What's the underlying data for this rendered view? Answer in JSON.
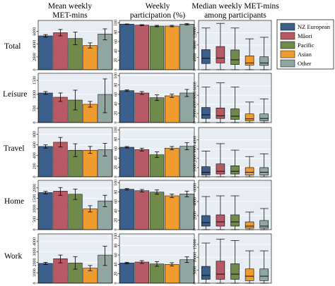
{
  "column_titles": [
    [
      "Mean weekly",
      "MET-mins"
    ],
    [
      "Weekly",
      "participation (%)"
    ],
    [
      "Median weekly MET-mins",
      "among participants"
    ]
  ],
  "row_labels": [
    "Total",
    "Leisure",
    "Travel",
    "Home",
    "Work"
  ],
  "colors": {
    "NZ European": "#3b5f8c",
    "Māori": "#b85a66",
    "Pacific": "#6f8a4a",
    "Asian": "#f09b2e",
    "Other": "#8fa6a1",
    "panel_background": "#e8edf4",
    "grid": "#ffffff"
  },
  "chart_data": {
    "type": "bar",
    "legend": {
      "entries": [
        "NZ European",
        "Māori",
        "Pacific",
        "Asian",
        "Other"
      ],
      "placement": "top-right"
    },
    "groups": [
      "NZ European",
      "Māori",
      "Pacific",
      "Asian",
      "Other"
    ],
    "panels": {
      "mean_met_mins": {
        "type": "bar",
        "yticks": {
          "Total": [
            0,
            2000,
            4000,
            6000
          ],
          "Leisure": [
            0,
            500,
            1000,
            1500
          ],
          "Travel": [
            0,
            200,
            400,
            600,
            800
          ],
          "Home": [
            0,
            500,
            1000,
            1500,
            2000
          ],
          "Work": [
            0,
            1000,
            2000,
            3000,
            4000
          ]
        },
        "ylim": {
          "Total": [
            0,
            7500
          ],
          "Leisure": [
            0,
            1700
          ],
          "Travel": [
            0,
            900
          ],
          "Home": [
            0,
            2300
          ],
          "Work": [
            0,
            4600
          ]
        },
        "values": {
          "Total": [
            5300,
            5800,
            4900,
            3800,
            5600
          ],
          "Leisure": [
            1050,
            900,
            800,
            650,
            1000
          ],
          "Travel": [
            570,
            650,
            500,
            500,
            510
          ],
          "Home": [
            1780,
            1850,
            1700,
            1000,
            1380
          ],
          "Work": [
            1900,
            2350,
            1950,
            1450,
            2700
          ]
        },
        "error_low": {
          "Total": [
            5100,
            5300,
            3900,
            3400,
            4700
          ],
          "Leisure": [
            1000,
            750,
            450,
            550,
            350
          ],
          "Travel": [
            540,
            560,
            380,
            440,
            390
          ],
          "Home": [
            1720,
            1650,
            1450,
            850,
            1100
          ],
          "Work": [
            1800,
            1950,
            1350,
            1200,
            1700
          ]
        },
        "error_high": {
          "Total": [
            5500,
            6300,
            5900,
            4200,
            6400
          ],
          "Leisure": [
            1100,
            1050,
            1150,
            750,
            1550
          ],
          "Travel": [
            600,
            740,
            620,
            570,
            630
          ],
          "Home": [
            1840,
            2020,
            1950,
            1150,
            1650
          ],
          "Work": [
            2000,
            2700,
            2550,
            1700,
            3550
          ]
        }
      },
      "participation_pct": {
        "type": "bar",
        "yticks": [
          0,
          20,
          40,
          60,
          80,
          100
        ],
        "ylim": [
          0,
          102
        ],
        "values": {
          "Total": [
            97,
            95,
            93,
            93,
            97
          ],
          "Leisure": [
            68,
            63,
            53,
            57,
            63
          ],
          "Travel": [
            63,
            58,
            47,
            61,
            65
          ],
          "Home": [
            86,
            83,
            80,
            72,
            76
          ],
          "Work": [
            43,
            45,
            41,
            40,
            50
          ]
        },
        "error_low": {
          "Total": [
            96.5,
            94,
            91.5,
            91.5,
            95.5
          ],
          "Leisure": [
            66.5,
            60,
            47,
            53.5,
            55.5
          ],
          "Travel": [
            61.5,
            55,
            41,
            57.5,
            57.5
          ],
          "Home": [
            84.5,
            80.5,
            75.5,
            68.5,
            70
          ],
          "Work": [
            41.5,
            42,
            36,
            36.5,
            44
          ]
        },
        "error_high": {
          "Total": [
            97.5,
            96,
            94.5,
            94.5,
            98.5
          ],
          "Leisure": [
            69.5,
            66,
            59,
            60.5,
            70.5
          ],
          "Travel": [
            64.5,
            61,
            53,
            64.5,
            72.5
          ],
          "Home": [
            87.5,
            85.5,
            84.5,
            75.5,
            82
          ],
          "Work": [
            44.5,
            48,
            46,
            43.5,
            56
          ]
        }
      },
      "median_met_mins_participants": {
        "type": "box",
        "yticks": {
          "Total": [
            0,
            4000,
            8000,
            12000
          ],
          "Leisure": [
            0,
            2000,
            4000,
            6000,
            8000
          ],
          "Travel": [
            0,
            1000,
            2000,
            3000,
            4000
          ],
          "Home": [
            0,
            2000,
            4000,
            6000
          ],
          "Work": [
            0,
            5000,
            10000,
            15000
          ]
        },
        "ylim": {
          "Total": [
            0,
            15500
          ],
          "Leisure": [
            0,
            10500
          ],
          "Travel": [
            0,
            5200
          ],
          "Home": [
            0,
            6800
          ],
          "Work": [
            0,
            18500
          ]
        },
        "boxes": {
          "Total": [
            {
              "whisker_low": 0,
              "q1": 2000,
              "median": 3700,
              "q3": 6500,
              "whisker_high": 13500
            },
            {
              "whisker_low": 0,
              "q1": 2200,
              "median": 3800,
              "q3": 7500,
              "whisker_high": 15000
            },
            {
              "whisker_low": 0,
              "q1": 1700,
              "median": 3200,
              "q3": 6400,
              "whisker_high": 13500
            },
            {
              "whisker_low": 0,
              "q1": 1500,
              "median": 2200,
              "q3": 4500,
              "whisker_high": 10000
            },
            {
              "whisker_low": 0,
              "q1": 1400,
              "median": 2200,
              "q3": 4200,
              "whisker_high": 10500
            }
          ],
          "Leisure": [
            {
              "whisker_low": 0,
              "q1": 900,
              "median": 1700,
              "q3": 3300,
              "whisker_high": 7800
            },
            {
              "whisker_low": 0,
              "q1": 900,
              "median": 1500,
              "q3": 3200,
              "whisker_high": 8700
            },
            {
              "whisker_low": 0,
              "q1": 700,
              "median": 1400,
              "q3": 3000,
              "whisker_high": 7800
            },
            {
              "whisker_low": 0,
              "q1": 400,
              "median": 800,
              "q3": 1900,
              "whisker_high": 4500
            },
            {
              "whisker_low": 0,
              "q1": 400,
              "median": 900,
              "q3": 1900,
              "whisker_high": 5200
            }
          ],
          "Travel": [
            {
              "whisker_low": 0,
              "q1": 200,
              "median": 500,
              "q3": 1100,
              "whisker_high": 2800
            },
            {
              "whisker_low": 0,
              "q1": 300,
              "median": 600,
              "q3": 1400,
              "whisker_high": 3600
            },
            {
              "whisker_low": 0,
              "q1": 300,
              "median": 600,
              "q3": 1200,
              "whisker_high": 2900
            },
            {
              "whisker_low": 0,
              "q1": 200,
              "median": 500,
              "q3": 1000,
              "whisker_high": 2200
            },
            {
              "whisker_low": 0,
              "q1": 200,
              "median": 500,
              "q3": 1000,
              "whisker_high": 2500
            }
          ],
          "Home": [
            {
              "whisker_low": 0,
              "q1": 500,
              "median": 1000,
              "q3": 2000,
              "whisker_high": 4700
            },
            {
              "whisker_low": 0,
              "q1": 500,
              "median": 1100,
              "q3": 2100,
              "whisker_high": 4800
            },
            {
              "whisker_low": 0,
              "q1": 500,
              "median": 1100,
              "q3": 2100,
              "whisker_high": 4800
            },
            {
              "whisker_low": 0,
              "q1": 200,
              "median": 500,
              "q3": 1100,
              "whisker_high": 2500
            },
            {
              "whisker_low": 0,
              "q1": 200,
              "median": 500,
              "q3": 1300,
              "whisker_high": 3000
            }
          ],
          "Work": [
            {
              "whisker_low": 0,
              "q1": 1500,
              "median": 3000,
              "q3": 6500,
              "whisker_high": 15500
            },
            {
              "whisker_low": 0,
              "q1": 1500,
              "median": 3500,
              "q3": 8500,
              "whisker_high": 17000
            },
            {
              "whisker_low": 0,
              "q1": 1500,
              "median": 3500,
              "q3": 7500,
              "whisker_high": 16500
            },
            {
              "whisker_low": 0,
              "q1": 1000,
              "median": 2700,
              "q3": 5500,
              "whisker_high": 12500
            },
            {
              "whisker_low": 0,
              "q1": 1000,
              "median": 2700,
              "q3": 5500,
              "whisker_high": 12500
            }
          ]
        }
      }
    }
  }
}
